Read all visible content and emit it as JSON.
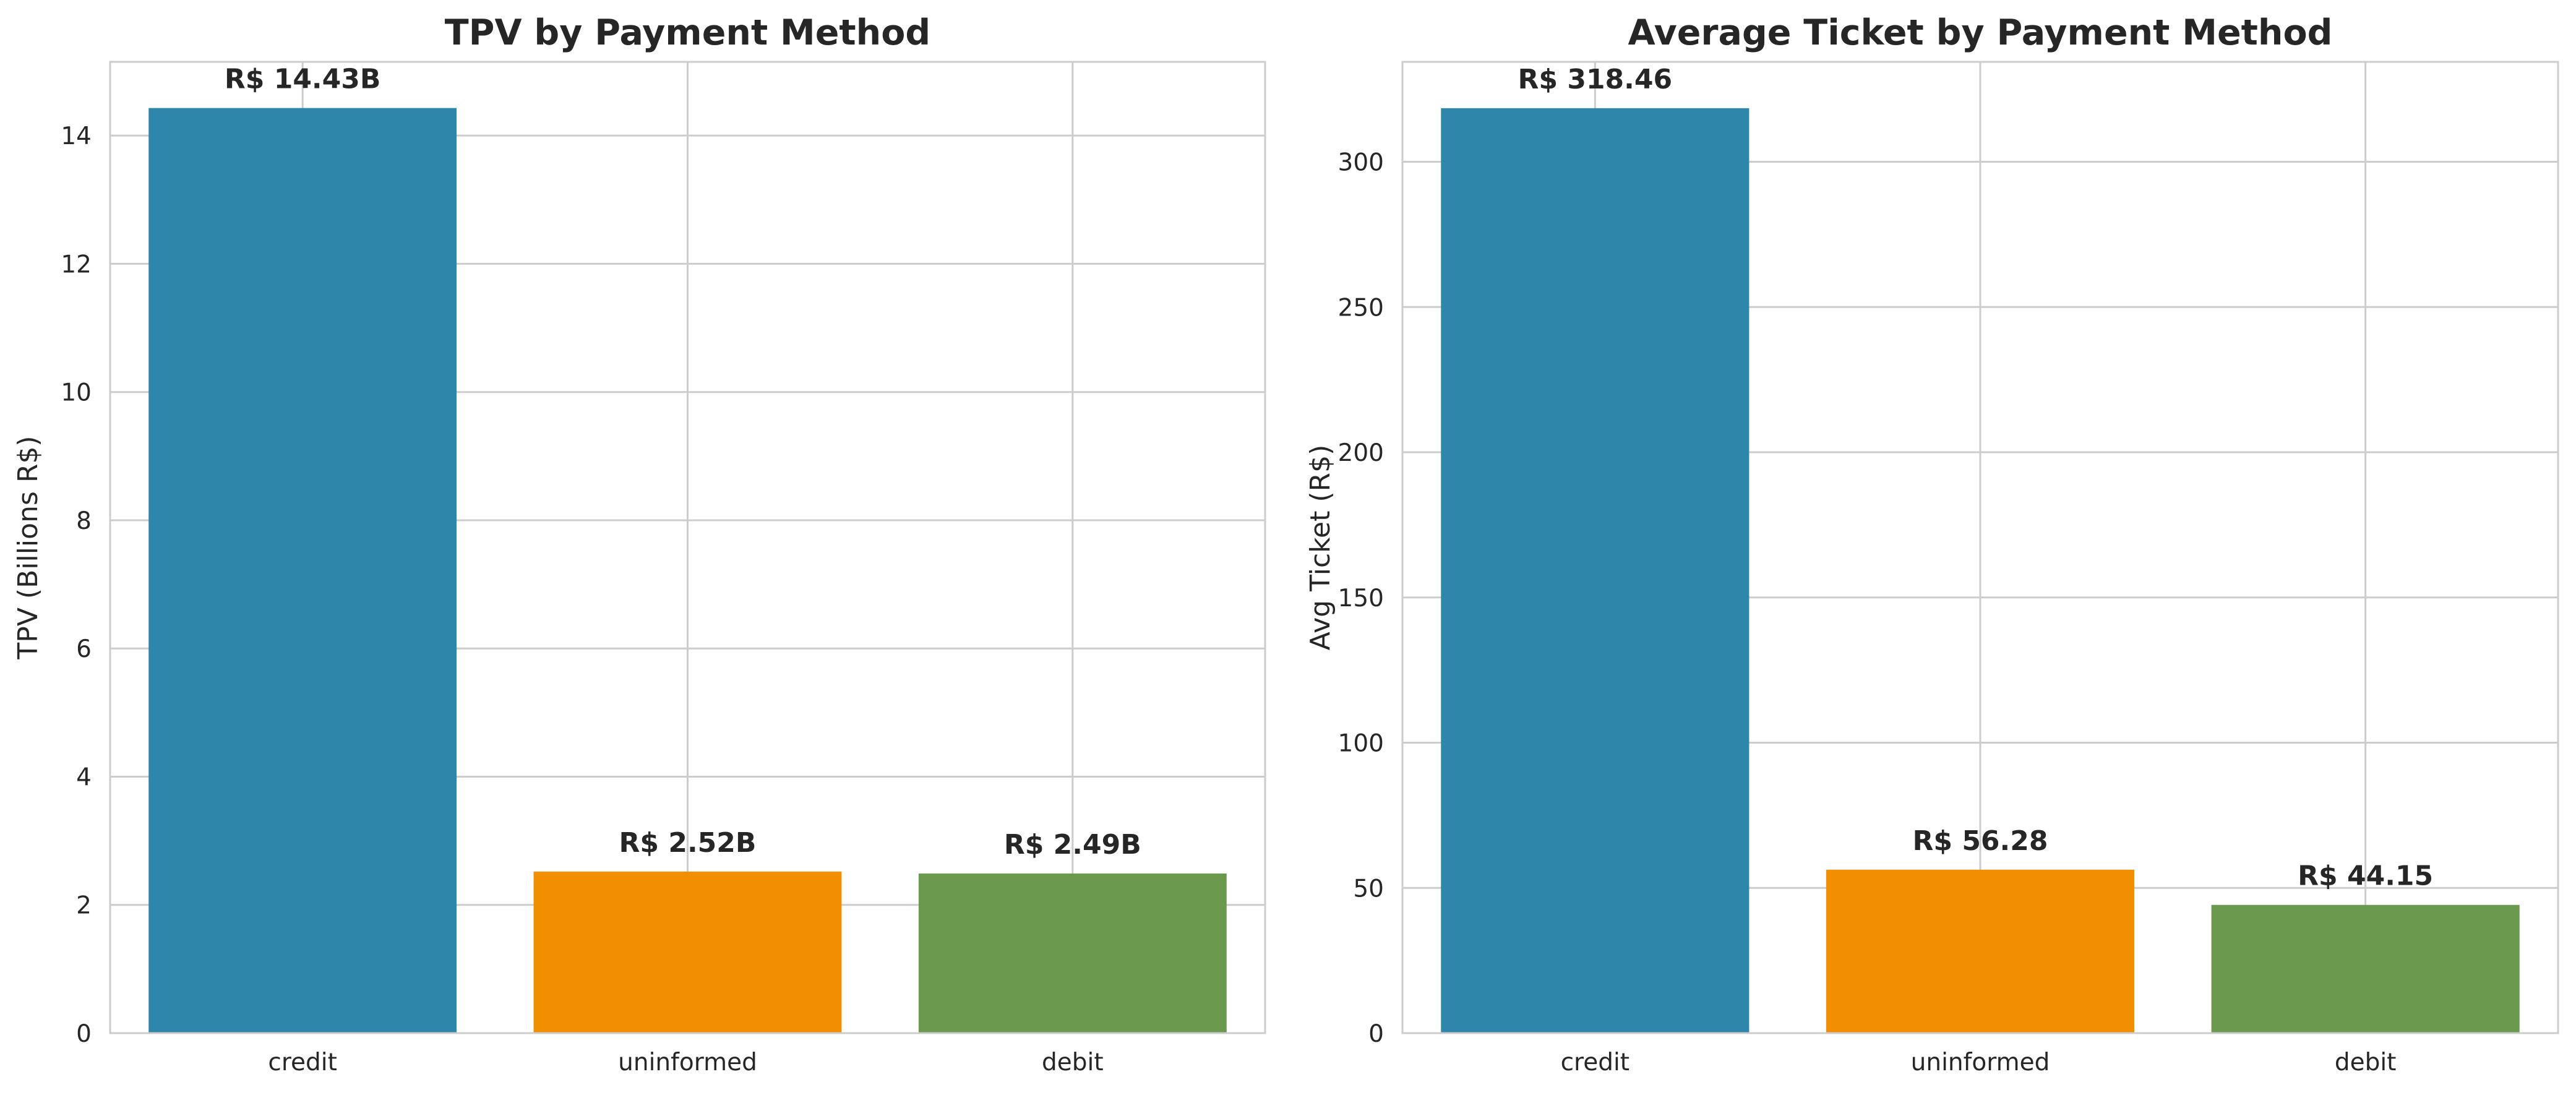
{
  "chart_data": [
    {
      "type": "bar",
      "title": "TPV by Payment Method",
      "xlabel": "",
      "ylabel": "TPV (Billions R$)",
      "categories": [
        "credit",
        "uninformed",
        "debit"
      ],
      "values": [
        14.43,
        2.52,
        2.49
      ],
      "data_labels": [
        "R$ 14.43B",
        "R$ 2.52B",
        "R$ 2.49B"
      ],
      "colors": [
        "#2e86ab",
        "#f18f01",
        "#6a994e"
      ],
      "ylim": [
        0,
        15.15
      ],
      "yticks": [
        0,
        2,
        4,
        6,
        8,
        10,
        12,
        14
      ],
      "ytick_labels": [
        "0",
        "2",
        "4",
        "6",
        "8",
        "10",
        "12",
        "14"
      ],
      "grid": true
    },
    {
      "type": "bar",
      "title": "Average Ticket by Payment Method",
      "xlabel": "",
      "ylabel": "Avg Ticket (R$)",
      "categories": [
        "credit",
        "uninformed",
        "debit"
      ],
      "values": [
        318.46,
        56.28,
        44.15
      ],
      "data_labels": [
        "R$ 318.46",
        "R$ 56.28",
        "R$ 44.15"
      ],
      "colors": [
        "#2e86ab",
        "#f18f01",
        "#6a994e"
      ],
      "ylim": [
        0,
        334.4
      ],
      "yticks": [
        0,
        50,
        100,
        150,
        200,
        250,
        300
      ],
      "ytick_labels": [
        "0",
        "50",
        "100",
        "150",
        "200",
        "250",
        "300"
      ],
      "grid": true
    }
  ]
}
